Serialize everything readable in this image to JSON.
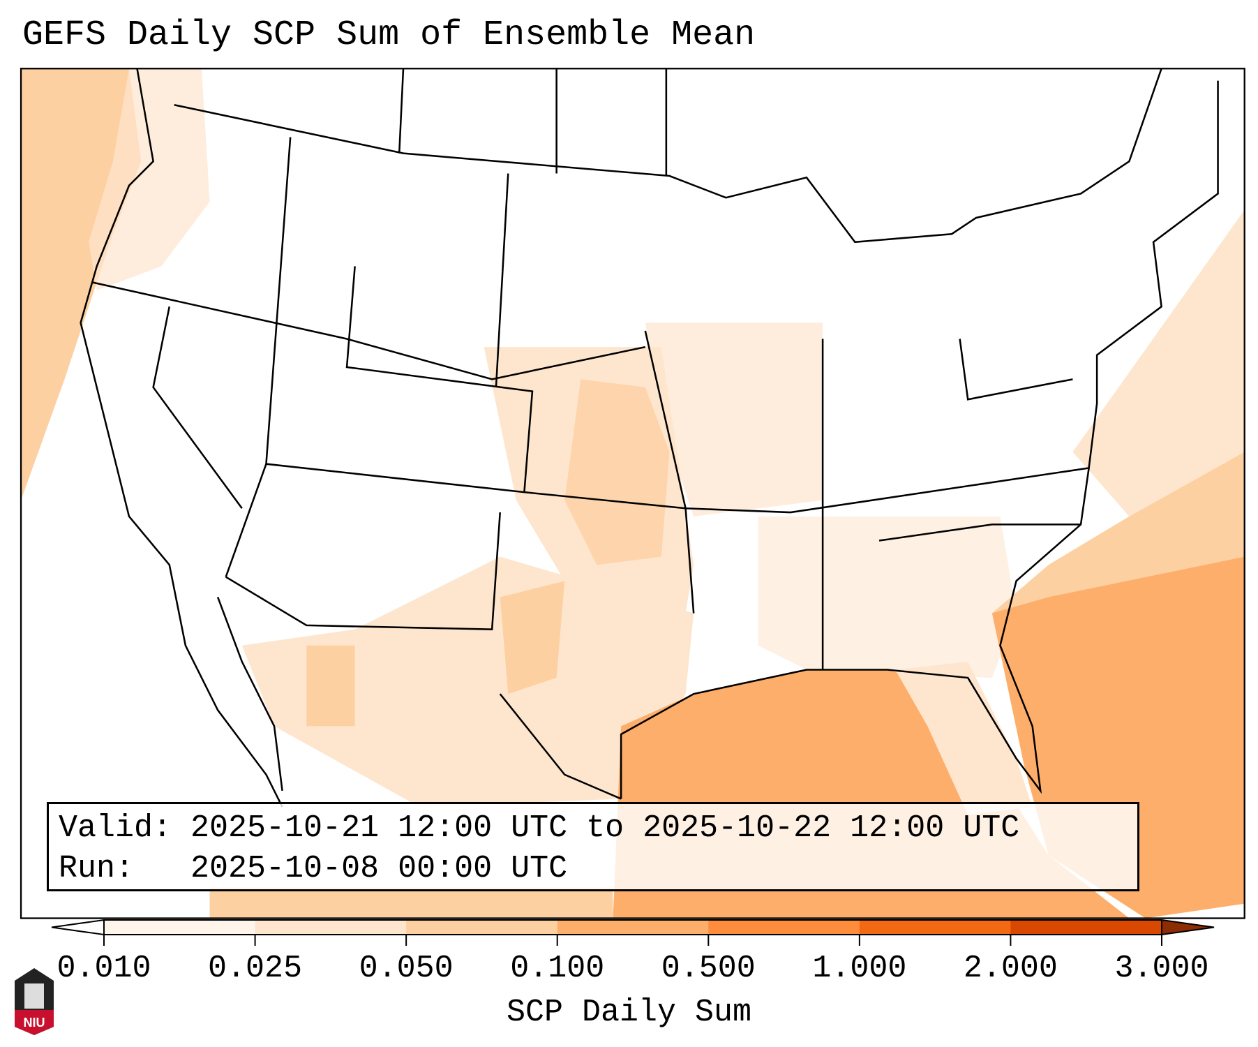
{
  "title": "GEFS Daily SCP Sum of Ensemble Mean",
  "info": {
    "valid_line": "Valid: 2025-10-21 12:00 UTC to 2025-10-22 12:00 UTC",
    "run_line": "Run:   2025-10-08 00:00 UTC"
  },
  "colorbar": {
    "label": "SCP Daily Sum",
    "ticks": [
      "0.010",
      "0.025",
      "0.050",
      "0.100",
      "0.500",
      "1.000",
      "2.000",
      "3.000"
    ],
    "under_color": "#ffffff",
    "bin_colors": [
      "#fff5eb",
      "#fee6ce",
      "#fdd0a2",
      "#fdae6b",
      "#fd8d3c",
      "#f16913",
      "#d94801"
    ],
    "over_color": "#8c2d04"
  },
  "logo": {
    "text": "NIU",
    "color": "#c8102e"
  }
}
